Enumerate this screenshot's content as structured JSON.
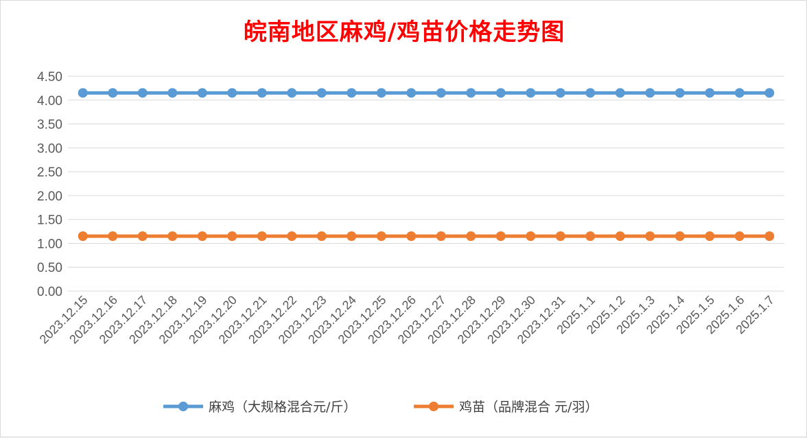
{
  "chart_data": {
    "type": "line",
    "title": "皖南地区麻鸡/鸡苗价格走势图",
    "xlabel": "",
    "ylabel": "",
    "ylim": [
      0,
      4.5
    ],
    "yticks": [
      "0.00",
      "0.50",
      "1.00",
      "1.50",
      "2.00",
      "2.50",
      "3.00",
      "3.50",
      "4.00",
      "4.50"
    ],
    "categories": [
      "2023.12.15",
      "2023.12.16",
      "2023.12.17",
      "2023.12.18",
      "2023.12.19",
      "2023.12.20",
      "2023.12.21",
      "2023.12.22",
      "2023.12.23",
      "2023.12.24",
      "2023.12.25",
      "2023.12.26",
      "2023.12.27",
      "2023.12.28",
      "2023.12.29",
      "2023.12.30",
      "2023.12.31",
      "2025.1.1",
      "2025.1.2",
      "2025.1.3",
      "2025.1.4",
      "2025.1.5",
      "2025.1.6",
      "2025.1.7"
    ],
    "series": [
      {
        "name": "麻鸡（大规格混合元/斤）",
        "color": "#5b9bd5",
        "values": [
          4.15,
          4.15,
          4.15,
          4.15,
          4.15,
          4.15,
          4.15,
          4.15,
          4.15,
          4.15,
          4.15,
          4.15,
          4.15,
          4.15,
          4.15,
          4.15,
          4.15,
          4.15,
          4.15,
          4.15,
          4.15,
          4.15,
          4.15,
          4.15
        ]
      },
      {
        "name": "鸡苗（品牌混合 元/羽）",
        "color": "#ed7d31",
        "values": [
          1.15,
          1.15,
          1.15,
          1.15,
          1.15,
          1.15,
          1.15,
          1.15,
          1.15,
          1.15,
          1.15,
          1.15,
          1.15,
          1.15,
          1.15,
          1.15,
          1.15,
          1.15,
          1.15,
          1.15,
          1.15,
          1.15,
          1.15,
          1.15
        ]
      }
    ],
    "grid": true,
    "legend": "bottom"
  }
}
